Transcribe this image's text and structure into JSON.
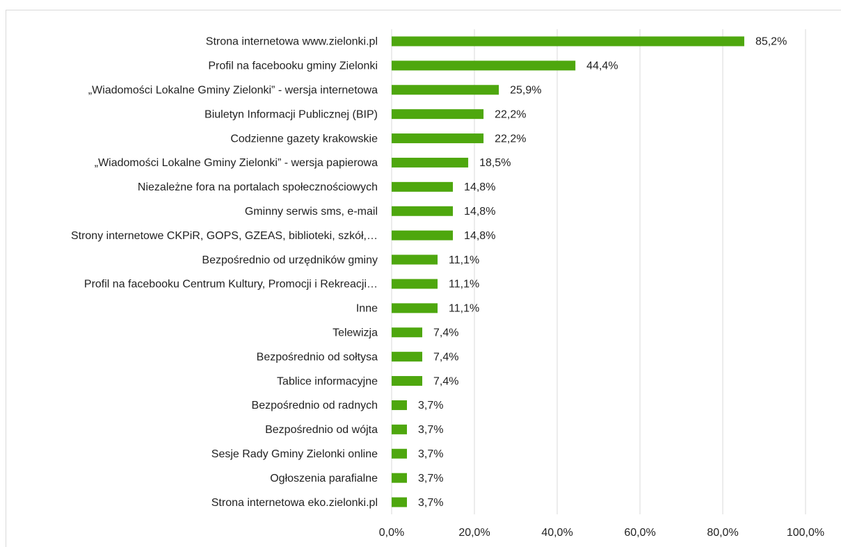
{
  "chart_data": {
    "type": "bar",
    "orientation": "horizontal",
    "categories": [
      "Strona internetowa www.zielonki.pl",
      "Profil na facebooku gminy Zielonki",
      "„Wiadomości Lokalne Gminy Zielonki” - wersja internetowa",
      "Biuletyn Informacji Publicznej (BIP)",
      "Codzienne gazety krakowskie",
      "„Wiadomości Lokalne Gminy Zielonki” - wersja papierowa",
      "Niezależne fora na portalach społecznościowych",
      "Gminny serwis sms, e-mail",
      "Strony internetowe CKPiR,  GOPS, GZEAS, biblioteki, szkół,…",
      "Bezpośrednio od urzędników gminy",
      "Profil na facebooku Centrum Kultury, Promocji i Rekreacji…",
      "Inne",
      "Telewizja",
      "Bezpośrednio od sołtysa",
      "Tablice informacyjne",
      "Bezpośrednio od radnych",
      "Bezpośrednio od wójta",
      "Sesje Rady Gminy Zielonki online",
      "Ogłoszenia parafialne",
      "Strona internetowa eko.zielonki.pl"
    ],
    "values": [
      85.2,
      44.4,
      25.9,
      22.2,
      22.2,
      18.5,
      14.8,
      14.8,
      14.8,
      11.1,
      11.1,
      11.1,
      7.4,
      7.4,
      7.4,
      3.7,
      3.7,
      3.7,
      3.7,
      3.7
    ],
    "value_labels": [
      "85,2%",
      "44,4%",
      "25,9%",
      "22,2%",
      "22,2%",
      "18,5%",
      "14,8%",
      "14,8%",
      "14,8%",
      "11,1%",
      "11,1%",
      "11,1%",
      "7,4%",
      "7,4%",
      "7,4%",
      "3,7%",
      "3,7%",
      "3,7%",
      "3,7%",
      "3,7%"
    ],
    "color": "#4ea70e",
    "xlim": [
      0,
      100
    ],
    "xticks": [
      {
        "value": 0,
        "label": "0,0%"
      },
      {
        "value": 20,
        "label": "20,0%"
      },
      {
        "value": 40,
        "label": "40,0%"
      },
      {
        "value": 60,
        "label": "60,0%"
      },
      {
        "value": 80,
        "label": "80,0%"
      },
      {
        "value": 100,
        "label": "100,0%"
      }
    ],
    "grid": true
  }
}
